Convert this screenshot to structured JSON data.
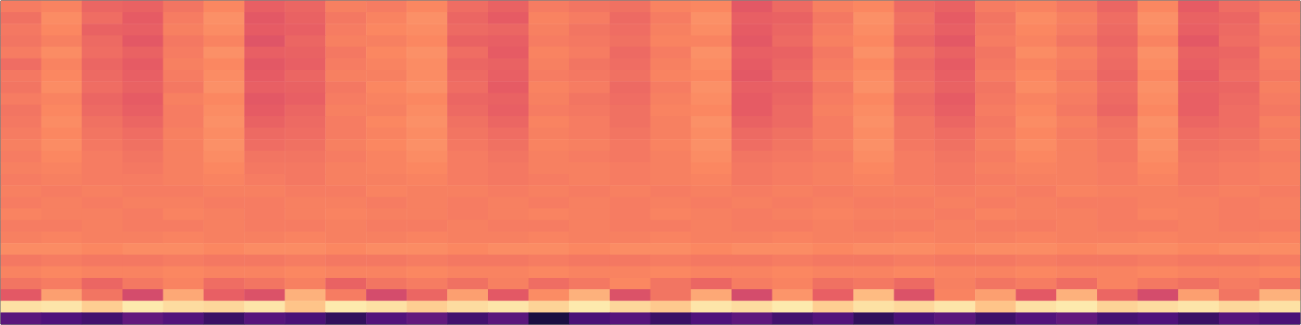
{
  "chart_data": {
    "type": "heatmap",
    "tick_labels": false,
    "grid": false,
    "zlim": [
      0,
      100
    ],
    "values": [
      [
        72,
        74,
        66,
        65,
        70,
        75,
        64,
        66,
        73,
        72,
        75,
        68,
        65,
        72,
        70,
        69,
        74,
        75,
        62,
        67,
        73,
        75,
        67,
        65,
        72,
        74,
        71,
        66,
        75,
        63,
        68,
        71
      ],
      [
        69,
        76,
        68,
        63,
        72,
        77,
        62,
        65,
        71,
        74,
        77,
        66,
        63,
        74,
        72,
        67,
        72,
        77,
        64,
        65,
        71,
        77,
        69,
        63,
        70,
        76,
        73,
        68,
        77,
        65,
        66,
        73
      ],
      [
        71,
        75,
        65,
        64,
        73,
        76,
        63,
        64,
        72,
        75,
        76,
        67,
        66,
        73,
        70,
        68,
        73,
        76,
        63,
        66,
        72,
        76,
        68,
        64,
        71,
        75,
        72,
        67,
        76,
        64,
        67,
        72
      ],
      [
        70,
        73,
        67,
        62,
        71,
        74,
        61,
        66,
        73,
        73,
        75,
        65,
        64,
        72,
        71,
        69,
        74,
        74,
        62,
        67,
        73,
        75,
        66,
        62,
        72,
        74,
        70,
        66,
        74,
        62,
        68,
        71
      ],
      [
        72,
        76,
        68,
        65,
        72,
        77,
        64,
        65,
        71,
        75,
        77,
        68,
        63,
        74,
        72,
        67,
        72,
        77,
        64,
        65,
        71,
        77,
        69,
        65,
        70,
        76,
        73,
        68,
        77,
        65,
        66,
        73
      ],
      [
        68,
        74,
        66,
        63,
        73,
        75,
        62,
        64,
        72,
        74,
        76,
        66,
        65,
        73,
        70,
        68,
        73,
        76,
        63,
        66,
        72,
        75,
        67,
        63,
        71,
        74,
        72,
        67,
        76,
        64,
        67,
        72
      ],
      [
        71,
        75,
        67,
        64,
        72,
        76,
        63,
        66,
        73,
        73,
        76,
        67,
        64,
        72,
        71,
        69,
        74,
        75,
        62,
        67,
        73,
        76,
        68,
        64,
        72,
        75,
        71,
        66,
        75,
        63,
        68,
        71
      ],
      [
        70,
        76,
        68,
        65,
        71,
        77,
        64,
        65,
        71,
        75,
        77,
        68,
        63,
        74,
        72,
        67,
        72,
        77,
        64,
        65,
        71,
        77,
        69,
        65,
        70,
        76,
        73,
        68,
        77,
        65,
        66,
        73
      ],
      [
        72,
        74,
        66,
        63,
        73,
        75,
        62,
        64,
        72,
        74,
        75,
        66,
        65,
        73,
        70,
        68,
        73,
        76,
        63,
        66,
        72,
        75,
        67,
        63,
        71,
        74,
        72,
        67,
        76,
        64,
        67,
        72
      ],
      [
        70,
        75,
        67,
        64,
        72,
        76,
        63,
        66,
        73,
        73,
        76,
        67,
        64,
        72,
        71,
        69,
        74,
        75,
        63,
        67,
        73,
        76,
        68,
        64,
        72,
        75,
        71,
        66,
        75,
        64,
        68,
        71
      ],
      [
        71,
        76,
        69,
        66,
        72,
        77,
        65,
        67,
        72,
        75,
        77,
        69,
        66,
        74,
        72,
        69,
        73,
        77,
        65,
        67,
        72,
        77,
        70,
        66,
        71,
        76,
        73,
        69,
        77,
        66,
        68,
        73
      ],
      [
        72,
        75,
        70,
        68,
        73,
        76,
        67,
        68,
        72,
        74,
        76,
        70,
        68,
        73,
        72,
        70,
        73,
        76,
        67,
        69,
        72,
        76,
        70,
        68,
        72,
        75,
        72,
        70,
        76,
        68,
        69,
        72
      ],
      [
        73,
        76,
        71,
        69,
        73,
        77,
        68,
        69,
        73,
        75,
        77,
        71,
        69,
        74,
        73,
        71,
        74,
        77,
        68,
        70,
        73,
        77,
        71,
        69,
        73,
        76,
        73,
        71,
        77,
        69,
        70,
        73
      ],
      [
        72,
        75,
        72,
        70,
        73,
        76,
        70,
        70,
        72,
        74,
        76,
        72,
        70,
        73,
        72,
        71,
        73,
        76,
        70,
        71,
        72,
        76,
        72,
        70,
        72,
        75,
        73,
        71,
        76,
        70,
        71,
        72
      ],
      [
        73,
        74,
        72,
        71,
        73,
        75,
        71,
        71,
        73,
        74,
        75,
        72,
        71,
        73,
        73,
        72,
        73,
        75,
        71,
        72,
        73,
        75,
        72,
        71,
        73,
        74,
        73,
        72,
        75,
        71,
        72,
        73
      ],
      [
        72,
        73,
        72,
        72,
        73,
        74,
        72,
        71,
        73,
        73,
        74,
        72,
        71,
        72,
        73,
        72,
        73,
        74,
        71,
        72,
        73,
        74,
        72,
        71,
        72,
        73,
        73,
        72,
        74,
        71,
        72,
        73
      ],
      [
        73,
        72,
        73,
        72,
        72,
        73,
        73,
        72,
        72,
        74,
        73,
        73,
        72,
        73,
        72,
        73,
        72,
        73,
        72,
        73,
        72,
        73,
        73,
        72,
        73,
        72,
        74,
        73,
        73,
        72,
        73,
        72
      ],
      [
        72,
        73,
        72,
        73,
        73,
        72,
        72,
        73,
        73,
        72,
        73,
        72,
        73,
        72,
        73,
        72,
        73,
        72,
        73,
        72,
        73,
        72,
        72,
        73,
        72,
        73,
        72,
        72,
        73,
        73,
        72,
        73
      ],
      [
        74,
        73,
        73,
        72,
        74,
        73,
        72,
        73,
        74,
        73,
        73,
        72,
        73,
        74,
        73,
        72,
        74,
        73,
        72,
        73,
        74,
        73,
        73,
        72,
        74,
        73,
        73,
        72,
        74,
        73,
        72,
        73
      ],
      [
        72,
        72,
        73,
        72,
        72,
        73,
        72,
        72,
        73,
        72,
        72,
        73,
        72,
        72,
        73,
        72,
        72,
        73,
        72,
        72,
        73,
        72,
        72,
        73,
        72,
        72,
        73,
        72,
        72,
        73,
        72,
        72
      ],
      [
        73,
        74,
        73,
        73,
        74,
        73,
        73,
        74,
        73,
        73,
        74,
        73,
        73,
        74,
        73,
        73,
        74,
        73,
        73,
        74,
        73,
        73,
        74,
        73,
        73,
        74,
        73,
        73,
        74,
        73,
        73,
        74
      ],
      [
        76,
        76,
        75,
        76,
        76,
        75,
        76,
        76,
        75,
        76,
        76,
        75,
        76,
        76,
        75,
        76,
        76,
        75,
        76,
        76,
        75,
        76,
        76,
        75,
        76,
        76,
        75,
        76,
        76,
        75,
        76,
        76
      ],
      [
        71,
        72,
        71,
        71,
        72,
        71,
        71,
        72,
        71,
        71,
        72,
        71,
        71,
        72,
        71,
        71,
        72,
        71,
        71,
        72,
        71,
        71,
        72,
        71,
        71,
        72,
        71,
        71,
        72,
        71,
        71,
        72
      ],
      [
        74,
        75,
        74,
        74,
        75,
        74,
        74,
        75,
        74,
        74,
        75,
        74,
        74,
        75,
        74,
        74,
        75,
        74,
        74,
        75,
        74,
        74,
        75,
        74,
        74,
        75,
        74,
        74,
        75,
        74,
        74,
        75
      ],
      [
        70,
        72,
        66,
        71,
        74,
        68,
        70,
        73,
        65,
        70,
        72,
        69,
        73,
        68,
        71,
        75,
        70,
        66,
        72,
        74,
        69,
        71,
        67,
        73,
        70,
        72,
        68,
        74,
        71,
        69,
        72,
        70
      ],
      [
        62,
        80,
        70,
        58,
        82,
        64,
        60,
        84,
        72,
        58,
        66,
        80,
        62,
        76,
        84,
        60,
        70,
        82,
        58,
        78,
        64,
        86,
        60,
        74,
        80,
        62,
        84,
        66,
        58,
        80,
        70,
        84
      ],
      [
        94,
        95,
        90,
        96,
        93,
        92,
        95,
        88,
        96,
        94,
        90,
        93,
        95,
        91,
        96,
        92,
        89,
        95,
        93,
        96,
        90,
        94,
        92,
        95,
        88,
        94,
        96,
        91,
        93,
        95,
        92,
        94
      ],
      [
        28,
        25,
        22,
        30,
        26,
        20,
        27,
        24,
        18,
        26,
        30,
        22,
        28,
        12,
        24,
        27,
        20,
        25,
        29,
        22,
        26,
        18,
        24,
        28,
        21,
        26,
        30,
        23,
        25,
        20,
        27,
        24
      ]
    ]
  }
}
